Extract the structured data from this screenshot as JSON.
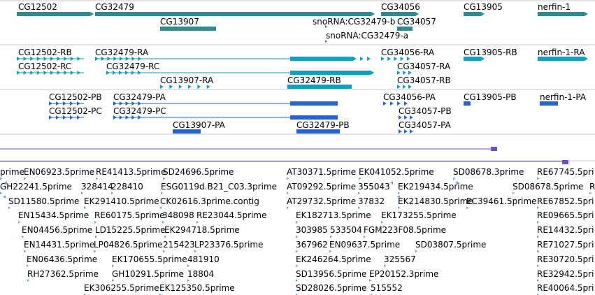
{
  "tracks": [
    {
      "id": "genes",
      "color": "#2e8b8b",
      "labels": [
        "CG12502",
        "CG32479",
        "CG34056",
        "CG13905",
        "nerfin-1",
        "CG13907",
        "snoRNA:CG32479-b",
        "CG34057",
        "snoRNA:CG32479-a"
      ]
    },
    {
      "id": "transcripts",
      "color": "#0aa0bf",
      "labels": [
        "CG12502-RB",
        "CG32479-RA",
        "CG34056-RA",
        "CG13905-RB",
        "nerfin-1-RA",
        "CG12502-RC",
        "CG32479-RC",
        "CG34057-RA",
        "CG13907-RA",
        "CG32479-RB",
        "CG34057-RB"
      ]
    },
    {
      "id": "proteins",
      "color": "#2563d6",
      "labels": [
        "CG12502-PB",
        "CG32479-PA",
        "CG34056-PA",
        "CG13905-PB",
        "nerfin-1-PA",
        "CG12502-PC",
        "CG32479-PC",
        "CG34057-PB",
        "CG13907-PA",
        "CG32479-PB",
        "CG34057-PA"
      ]
    },
    {
      "id": "est",
      "color": "#6fa7d8",
      "labels": [
        "prime",
        "EN06923.5prime",
        "RE41413.5prime",
        "SD24696.5prime",
        "AT30371.5prime",
        "EK041052.5prime",
        "SD08678.3prime",
        "RE67745.5pri",
        "GH22241.5prime",
        "328414",
        "228410",
        "ESG0119d.B21_C03.3prime",
        "AT09292.5prime",
        "355043",
        "EK219434.5prime",
        "SD08678.5prime",
        "R",
        "SD11580.5prime",
        "EK291410.5prime",
        "CK02616.3prime.contig",
        "AT29732.5prime",
        "37832",
        "EK214830.5prime",
        "EC39461.5prime",
        "RE67852.5pri",
        "EN15434.5prime",
        "RE60175.5prime",
        "348098",
        "RE23044.5prime",
        "EK182713.5prime",
        "EK173255.5prime",
        "RE09665.5pri",
        "EN04456.5prime",
        "LD15225.5prime",
        "EK294718.5prime",
        "303985",
        "533504",
        "FGM223F08.5prime",
        "RE14432.5pri",
        "EN14431.5prime",
        "LP04826.5prime",
        "215423",
        "LP23376.5prime",
        "367962",
        "EN09637.5prime",
        "SD03807.5prime",
        "RE71027.5pri",
        "EN06436.5prime",
        "EK170655.5prime",
        "481910",
        "EK246264.5prime",
        "325567",
        "RE30720.5pri",
        "RH27362.5prime",
        "GH10291.5prime",
        "18804",
        "SD13956.5prime",
        "EP20152.3prime",
        "RE32942.5pri",
        "EK306255.5prime",
        "EK125350.5prime",
        "SD28026.5prime",
        "515552",
        "RE40064.5pri"
      ]
    }
  ],
  "colors": {
    "grid": "#c8c8c8",
    "purple": "#6f4fc0",
    "gene": "#2e8b8b",
    "transcript": "#0aa0bf",
    "protein": "#2563d6",
    "est": "#6fa7d8"
  }
}
